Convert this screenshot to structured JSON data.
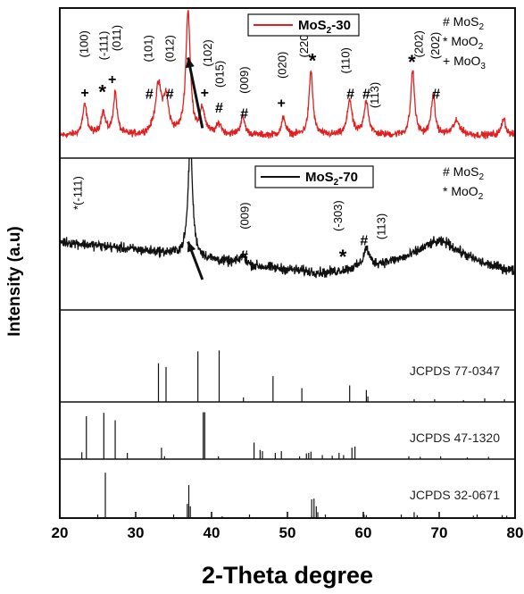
{
  "chart_data": {
    "type": "line",
    "xlabel": "2-Theta degree",
    "ylabel": "Intensity (a.u)",
    "xlim": [
      20,
      80
    ],
    "x_ticks": [
      "20",
      "30",
      "40",
      "50",
      "60",
      "70",
      "80"
    ],
    "panels": [
      {
        "id": "MoS2-30",
        "legend_main": "MoS",
        "legend_sub": "2",
        "legend_tail": "-30",
        "legend_placement": "top-center",
        "color": "#e02020",
        "baseline": 0.15,
        "noise": 0.035,
        "ramp": [
          [
            20,
            0.0
          ],
          [
            80,
            0.0
          ]
        ],
        "peaks": [
          {
            "x": 23.3,
            "h": 0.2,
            "w": 0.35
          },
          {
            "x": 25.7,
            "h": 0.15,
            "w": 0.35
          },
          {
            "x": 27.3,
            "h": 0.28,
            "w": 0.3
          },
          {
            "x": 33.0,
            "h": 0.32,
            "w": 0.5
          },
          {
            "x": 34.0,
            "h": 0.22,
            "w": 0.4
          },
          {
            "x": 36.9,
            "h": 0.82,
            "w": 0.35
          },
          {
            "x": 38.8,
            "h": 0.16,
            "w": 0.4
          },
          {
            "x": 41.0,
            "h": 0.07,
            "w": 0.4
          },
          {
            "x": 44.1,
            "h": 0.12,
            "w": 0.35
          },
          {
            "x": 49.5,
            "h": 0.12,
            "w": 0.3
          },
          {
            "x": 53.1,
            "h": 0.43,
            "w": 0.3
          },
          {
            "x": 58.2,
            "h": 0.24,
            "w": 0.35
          },
          {
            "x": 60.4,
            "h": 0.23,
            "w": 0.35
          },
          {
            "x": 66.5,
            "h": 0.43,
            "w": 0.3
          },
          {
            "x": 69.2,
            "h": 0.27,
            "w": 0.3
          },
          {
            "x": 72.3,
            "h": 0.09,
            "w": 0.6
          },
          {
            "x": 78.5,
            "h": 0.12,
            "w": 0.3
          }
        ],
        "annotations": [
          {
            "x": 23.3,
            "y": 0.43,
            "text": "+",
            "rotate": false
          },
          {
            "x": 23.3,
            "y": 0.76,
            "text": "(100)",
            "rotate": true
          },
          {
            "x": 25.6,
            "y": 0.43,
            "text": "*",
            "rotate": false,
            "big": true
          },
          {
            "x": 25.9,
            "y": 0.75,
            "text": "(-111)",
            "rotate": true
          },
          {
            "x": 26.9,
            "y": 0.52,
            "text": "+",
            "rotate": false
          },
          {
            "x": 27.6,
            "y": 0.8,
            "text": "(011)",
            "rotate": true
          },
          {
            "x": 31.8,
            "y": 0.42,
            "text": "#",
            "rotate": false
          },
          {
            "x": 31.8,
            "y": 0.73,
            "text": "(101)",
            "rotate": true
          },
          {
            "x": 34.5,
            "y": 0.42,
            "text": "#",
            "rotate": false
          },
          {
            "x": 34.6,
            "y": 0.73,
            "text": "(012)",
            "rotate": true
          },
          {
            "x": 39.1,
            "y": 0.43,
            "text": "+",
            "rotate": false
          },
          {
            "x": 39.6,
            "y": 0.7,
            "text": "(102)",
            "rotate": true
          },
          {
            "x": 41.0,
            "y": 0.33,
            "text": "#",
            "rotate": false
          },
          {
            "x": 41.2,
            "y": 0.56,
            "text": "(015)",
            "rotate": true
          },
          {
            "x": 44.3,
            "y": 0.29,
            "text": "#",
            "rotate": false
          },
          {
            "x": 44.4,
            "y": 0.52,
            "text": "(009)",
            "rotate": true
          },
          {
            "x": 49.2,
            "y": 0.36,
            "text": "+",
            "rotate": false
          },
          {
            "x": 49.4,
            "y": 0.62,
            "text": "(020)",
            "rotate": true
          },
          {
            "x": 52.3,
            "y": 0.76,
            "text": "(220)",
            "rotate": true
          },
          {
            "x": 53.3,
            "y": 0.64,
            "text": "*",
            "rotate": false,
            "big": true
          },
          {
            "x": 57.8,
            "y": 0.65,
            "text": "(110)",
            "rotate": true
          },
          {
            "x": 58.3,
            "y": 0.42,
            "text": "#",
            "rotate": false
          },
          {
            "x": 60.4,
            "y": 0.42,
            "text": "#",
            "rotate": false
          },
          {
            "x": 61.6,
            "y": 0.42,
            "text": "(113)",
            "rotate": true
          },
          {
            "x": 66.4,
            "y": 0.63,
            "text": "*",
            "rotate": false,
            "big": true
          },
          {
            "x": 67.4,
            "y": 0.76,
            "text": "(202)",
            "rotate": true
          },
          {
            "x": 69.6,
            "y": 0.42,
            "text": "#",
            "rotate": false
          },
          {
            "x": 69.6,
            "y": 0.75,
            "text": "(202)",
            "rotate": true
          }
        ],
        "side_legend": [
          {
            "main": "# MoS",
            "sub": "2"
          },
          {
            "main": "* MoO",
            "sub": "2"
          },
          {
            "main": "+ MoO",
            "sub": "3"
          }
        ],
        "arrow": {
          "from": [
            38.8,
            0.2
          ],
          "to": [
            36.9,
            0.67
          ]
        }
      },
      {
        "id": "MoS2-70",
        "legend_main": "MoS",
        "legend_sub": "2",
        "legend_tail": "-70",
        "legend_placement": "top-center",
        "color": "#111111",
        "baseline": 0.37,
        "noise": 0.05,
        "ramp": [
          [
            20,
            0.08
          ],
          [
            35,
            0.0
          ],
          [
            45,
            -0.08
          ],
          [
            55,
            -0.13
          ],
          [
            66,
            -0.05
          ],
          [
            71,
            0.0
          ],
          [
            76,
            -0.08
          ],
          [
            80,
            -0.12
          ]
        ],
        "peaks": [
          {
            "x": 37.2,
            "h": 0.75,
            "w": 0.35
          },
          {
            "x": 44.1,
            "h": 0.06,
            "w": 0.5
          },
          {
            "x": 60.4,
            "h": 0.12,
            "w": 0.45
          },
          {
            "x": 69.5,
            "h": 0.09,
            "w": 3.0
          }
        ],
        "annotations": [
          {
            "x": 22.5,
            "y": 0.77,
            "text": "*(-111)",
            "rotate": true
          },
          {
            "x": 44.3,
            "y": 0.35,
            "text": "#",
            "rotate": false
          },
          {
            "x": 44.5,
            "y": 0.62,
            "text": "(009)",
            "rotate": true
          },
          {
            "x": 57.3,
            "y": 0.34,
            "text": "*",
            "rotate": false,
            "big": true
          },
          {
            "x": 56.8,
            "y": 0.62,
            "text": "(-303)",
            "rotate": true
          },
          {
            "x": 60.1,
            "y": 0.45,
            "text": "#",
            "rotate": false
          },
          {
            "x": 62.5,
            "y": 0.55,
            "text": "(113)",
            "rotate": true
          }
        ],
        "side_legend": [
          {
            "main": "# MoS",
            "sub": "2"
          },
          {
            "main": "* MoO",
            "sub": "2"
          }
        ],
        "arrow": {
          "from": [
            38.8,
            0.2
          ],
          "to": [
            36.9,
            0.45
          ]
        }
      }
    ],
    "references": [
      {
        "label": "JCPDS 77-0347",
        "lines": [
          [
            33.0,
            0.42
          ],
          [
            34.0,
            0.38
          ],
          [
            38.2,
            0.55
          ],
          [
            41.0,
            0.56
          ],
          [
            44.2,
            0.05
          ],
          [
            48.1,
            0.28
          ],
          [
            51.9,
            0.15
          ],
          [
            58.2,
            0.18
          ],
          [
            60.4,
            0.13
          ],
          [
            60.6,
            0.06
          ],
          [
            66.7,
            0.03
          ],
          [
            69.4,
            0.03
          ],
          [
            73.2,
            0.02
          ],
          [
            76.0,
            0.04
          ],
          [
            78.6,
            0.03
          ]
        ]
      },
      {
        "label": "JCPDS 47-1320",
        "lines": [
          [
            22.9,
            0.12
          ],
          [
            23.5,
            0.75
          ],
          [
            25.8,
            0.81
          ],
          [
            27.3,
            0.68
          ],
          [
            28.9,
            0.11
          ],
          [
            33.4,
            0.2
          ],
          [
            33.8,
            0.05
          ],
          [
            38.9,
            0.82
          ],
          [
            39.1,
            0.82
          ],
          [
            40.9,
            0.05
          ],
          [
            45.6,
            0.29
          ],
          [
            46.4,
            0.16
          ],
          [
            46.7,
            0.14
          ],
          [
            48.4,
            0.11
          ],
          [
            49.2,
            0.14
          ],
          [
            51.6,
            0.05
          ],
          [
            52.5,
            0.1
          ],
          [
            52.8,
            0.11
          ],
          [
            53.1,
            0.13
          ],
          [
            54.6,
            0.07
          ],
          [
            55.9,
            0.06
          ],
          [
            56.8,
            0.11
          ],
          [
            57.4,
            0.07
          ],
          [
            58.5,
            0.2
          ],
          [
            58.9,
            0.22
          ],
          [
            66.0,
            0.05
          ],
          [
            67.5,
            0.04
          ],
          [
            70.2,
            0.05
          ],
          [
            73.7,
            0.03
          ],
          [
            76.5,
            0.04
          ]
        ]
      },
      {
        "label": "JCPDS 32-0671",
        "lines": [
          [
            26.0,
            0.77
          ],
          [
            36.8,
            0.24
          ],
          [
            37.0,
            0.56
          ],
          [
            37.2,
            0.2
          ],
          [
            41.4,
            0.03
          ],
          [
            53.2,
            0.32
          ],
          [
            53.5,
            0.33
          ],
          [
            53.8,
            0.2
          ],
          [
            54.0,
            0.1
          ],
          [
            60.1,
            0.06
          ],
          [
            60.4,
            0.05
          ],
          [
            66.7,
            0.1
          ],
          [
            67.1,
            0.05
          ],
          [
            74.5,
            0.04
          ],
          [
            78.3,
            0.05
          ],
          [
            78.9,
            0.04
          ]
        ]
      }
    ]
  }
}
